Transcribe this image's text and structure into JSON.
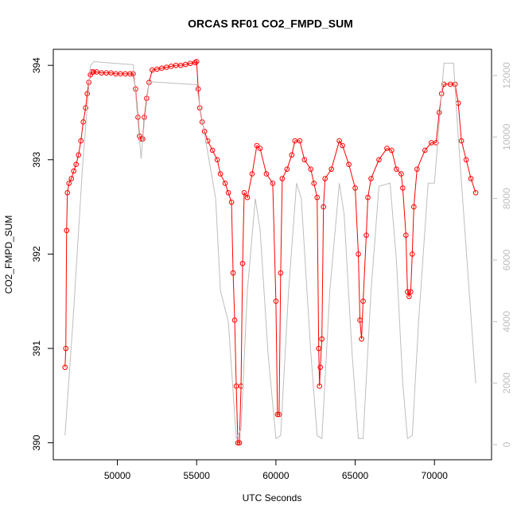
{
  "chart_data": {
    "type": "line",
    "title": "ORCAS RF01 CO2_FMPD_SUM",
    "x_label": "UTC Seconds",
    "y_label": "CO2_FMPD_SUM",
    "xlim": [
      45960,
      73600
    ],
    "xticks": [
      50000,
      55000,
      60000,
      65000,
      70000
    ],
    "ylim": [
      389.82,
      394.17
    ],
    "yticks": [
      390,
      391,
      392,
      393,
      394
    ],
    "y2lim": [
      -490,
      12850
    ],
    "y2ticks": [
      0,
      2000,
      4000,
      6000,
      8000,
      10000,
      12000
    ],
    "series": [
      {
        "color": "#ff0000",
        "markers": true,
        "x": [
          46700,
          46750,
          46800,
          46850,
          46950,
          47100,
          47250,
          47400,
          47550,
          47700,
          47850,
          48000,
          48100,
          48200,
          48300,
          48400,
          48500,
          48700,
          49000,
          49300,
          49600,
          49900,
          50200,
          50500,
          50800,
          51000,
          51150,
          51300,
          51400,
          51500,
          51600,
          51700,
          51850,
          52000,
          52200,
          52500,
          52800,
          53100,
          53400,
          53700,
          54000,
          54300,
          54600,
          54900,
          55000,
          55100,
          55200,
          55350,
          55500,
          55700,
          56000,
          56300,
          56500,
          56800,
          57000,
          57200,
          57300,
          57400,
          57500,
          57600,
          57700,
          57800,
          57900,
          58000,
          58200,
          58500,
          58800,
          59000,
          59400,
          59800,
          60000,
          60100,
          60200,
          60300,
          60400,
          60700,
          61000,
          61200,
          61500,
          61800,
          62200,
          62400,
          62600,
          62700,
          62750,
          62800,
          62900,
          63000,
          63100,
          63500,
          64000,
          64200,
          64600,
          65000,
          65200,
          65300,
          65400,
          65500,
          65700,
          65800,
          66000,
          66500,
          67000,
          67300,
          67600,
          67900,
          68000,
          68200,
          68300,
          68400,
          68500,
          68600,
          68700,
          68900,
          69400,
          69800,
          70100,
          70300,
          70450,
          70600,
          71000,
          71300,
          71500,
          71700,
          72000,
          72300,
          72600
        ],
        "values": [
          390.8,
          391.0,
          392.25,
          392.65,
          392.75,
          392.8,
          392.88,
          392.95,
          393.05,
          393.2,
          393.4,
          393.55,
          393.7,
          393.82,
          393.9,
          393.93,
          393.93,
          393.93,
          393.92,
          393.92,
          393.92,
          393.91,
          393.91,
          393.91,
          393.91,
          393.91,
          393.75,
          393.45,
          393.25,
          393.22,
          393.22,
          393.45,
          393.65,
          393.82,
          393.95,
          393.96,
          393.97,
          393.98,
          393.99,
          394.0,
          394.0,
          394.01,
          394.02,
          394.03,
          394.04,
          393.75,
          393.55,
          393.4,
          393.3,
          393.2,
          393.1,
          393.0,
          392.85,
          392.75,
          392.65,
          392.55,
          391.8,
          391.3,
          390.6,
          390.0,
          390.0,
          390.6,
          391.9,
          392.65,
          392.6,
          392.85,
          393.15,
          393.12,
          392.85,
          392.75,
          391.5,
          390.3,
          390.3,
          391.8,
          392.8,
          392.9,
          393.05,
          393.2,
          393.2,
          393.0,
          392.9,
          392.75,
          392.6,
          391.0,
          390.6,
          390.8,
          391.1,
          392.5,
          392.8,
          392.9,
          393.2,
          393.15,
          392.95,
          392.7,
          392.0,
          391.3,
          391.1,
          391.5,
          392.2,
          392.6,
          392.8,
          393.0,
          393.12,
          393.1,
          392.9,
          392.85,
          392.7,
          392.2,
          391.6,
          391.55,
          391.6,
          392.0,
          392.5,
          392.9,
          393.1,
          393.18,
          393.18,
          393.5,
          393.7,
          393.8,
          393.8,
          393.8,
          393.6,
          393.2,
          393.0,
          392.8,
          392.65
        ]
      },
      {
        "color": "#bebebe",
        "axis": "y2",
        "markers": false,
        "x": [
          46700,
          47200,
          47800,
          48300,
          48500,
          51000,
          51300,
          51500,
          51700,
          52000,
          55000,
          55200,
          56200,
          56500,
          57000,
          57500,
          57800,
          58200,
          58700,
          59000,
          59500,
          60000,
          60300,
          60800,
          61300,
          61600,
          62200,
          62600,
          62900,
          63400,
          64000,
          64300,
          64800,
          65200,
          65500,
          66000,
          66500,
          67200,
          67600,
          68000,
          68300,
          68600,
          69000,
          69600,
          70000,
          70600,
          71200,
          71500,
          72600
        ],
        "values": [
          300,
          4000,
          9000,
          12300,
          12450,
          12350,
          10500,
          9300,
          10500,
          11800,
          11700,
          11000,
          8000,
          5000,
          4000,
          200,
          500,
          5000,
          8000,
          7000,
          3000,
          200,
          300,
          5000,
          8500,
          8000,
          3000,
          300,
          200,
          5000,
          8500,
          7500,
          3000,
          200,
          200,
          5000,
          8400,
          8500,
          6000,
          2000,
          200,
          300,
          4000,
          8500,
          8500,
          12400,
          12400,
          10000,
          2000
        ]
      }
    ]
  }
}
